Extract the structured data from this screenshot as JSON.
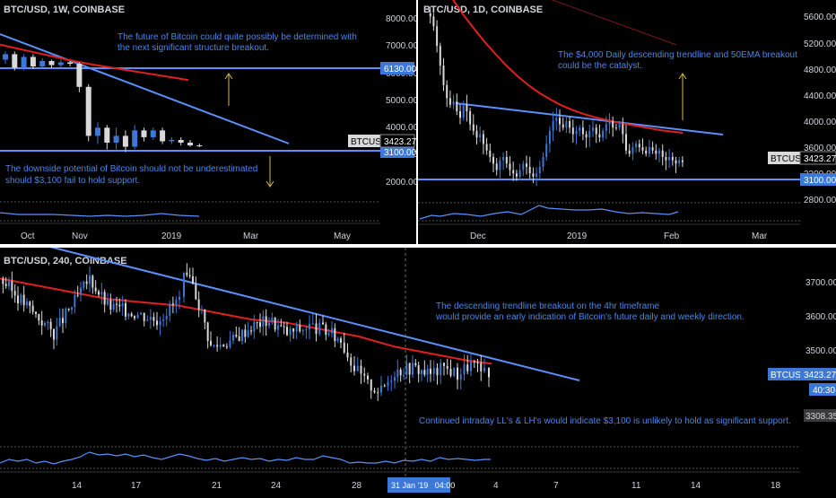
{
  "colors": {
    "background": "#000000",
    "text": "#d1d4dc",
    "up_candle": "#3c78d8",
    "down_candle": "#d9d9d9",
    "trendline": "#5b8ff9",
    "ema": "#e02020",
    "annotation": "#4a86e8",
    "separator": "#ffffff"
  },
  "chart_data": [
    {
      "id": "weekly",
      "type": "candlestick",
      "title": "BTC/USD, 1W, COINBASE",
      "symbol_tag": "BTCUSD",
      "last_price": "3423.27",
      "y_ticks": [
        "8000.00",
        "7000.00",
        "6000.00",
        "5000.00",
        "4000.00",
        "3000.00",
        "2000.00"
      ],
      "x_ticks": [
        "Oct",
        "Nov",
        "2019",
        "Mar",
        "May"
      ],
      "levels": [
        {
          "value": 6130,
          "label": "6130.00"
        },
        {
          "value": 3100,
          "label": "3100.00"
        }
      ],
      "candles": [
        [
          6600,
          6800,
          6450,
          6900
        ],
        [
          6800,
          6300,
          6200,
          6900
        ],
        [
          6300,
          6700,
          6200,
          6800
        ],
        [
          6700,
          6350,
          6250,
          6800
        ],
        [
          6350,
          6550,
          6300,
          6650
        ],
        [
          6550,
          6400,
          6300,
          6600
        ],
        [
          6400,
          6500,
          6300,
          6600
        ],
        [
          6500,
          6450,
          6350,
          6550
        ],
        [
          6450,
          5600,
          5400,
          6500
        ],
        [
          5600,
          3800,
          3600,
          5700
        ],
        [
          3800,
          4100,
          3500,
          4300
        ],
        [
          4100,
          3550,
          3300,
          4200
        ],
        [
          3550,
          3800,
          3300,
          4100
        ],
        [
          3800,
          3400,
          3200,
          4000
        ],
        [
          3400,
          4000,
          3300,
          4200
        ],
        [
          4000,
          3750,
          3600,
          4100
        ],
        [
          3750,
          4000,
          3650,
          4100
        ],
        [
          4000,
          3600,
          3500,
          4100
        ],
        [
          3600,
          3650,
          3500,
          3750
        ],
        [
          3650,
          3550,
          3450,
          3750
        ],
        [
          3550,
          3450,
          3400,
          3650
        ],
        [
          3450,
          3423,
          3380,
          3520
        ]
      ],
      "ema": [
        7150,
        7040,
        6930,
        6820,
        6710,
        6600,
        6500,
        6410,
        6330,
        6250,
        6170,
        6090,
        6010,
        5930,
        5850
      ],
      "annotations": [
        {
          "text": "The future of Bitcoin could quite possibly be determined with\nthe next significant structure breakout."
        },
        {
          "text": "The downside potential of Bitcoin should not be underestimated\nshould $3,100 fail to hold support."
        }
      ]
    },
    {
      "id": "daily",
      "type": "candlestick",
      "title": "BTC/USD, 1D, COINBASE",
      "symbol_tag": "BTCUSD",
      "last_price": "3423.27",
      "y_ticks": [
        "5600.00",
        "5200.00",
        "4800.00",
        "4400.00",
        "4000.00",
        "3600.00",
        "3200.00",
        "2800.00"
      ],
      "x_ticks": [
        "Dec",
        "2019",
        "Feb",
        "Mar"
      ],
      "levels": [
        {
          "value": 3100,
          "label": "3100.00"
        }
      ],
      "annotations": [
        {
          "text": "The $4,000 Daily descending trendline and 50EMA breakout\ncould be the catalyst."
        }
      ]
    },
    {
      "id": "h4",
      "type": "candlestick",
      "title": "BTC/USD, 240, COINBASE",
      "symbol_tag": "BTCUSD",
      "last_price": "3423.27",
      "countdown": "40:30",
      "extra_level_label": "3308.35",
      "y_ticks": [
        "3700.00",
        "3600.00",
        "3500.00"
      ],
      "x_ticks": [
        "14",
        "17",
        "21",
        "24",
        "28",
        "4",
        "7",
        "11",
        "14",
        "18"
      ],
      "crosshair_label": "31 Jan '19   04:00",
      "annotations": [
        {
          "text": "The descending trendline breakout on the 4hr timeframe\nwould provide an early indication of Bitcoin's future daily and weekly direction."
        },
        {
          "text": "Continued intraday LL's & LH's would indicate $3,100 is unlikely to hold as significant support."
        }
      ]
    }
  ]
}
